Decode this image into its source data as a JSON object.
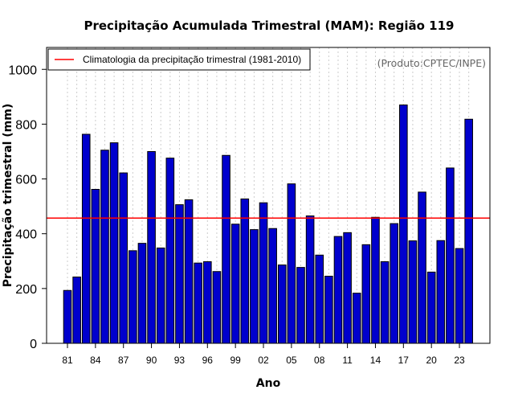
{
  "chart_data": {
    "type": "bar",
    "title": "Precipitação Acumulada Trimestral (MAM): Região 119",
    "xlabel": "Ano",
    "ylabel": "Precipitação trimestral (mm)",
    "source_note": "(Produto:CPTEC/INPE)",
    "ylim": [
      0,
      1080
    ],
    "yticks": [
      0,
      200,
      400,
      600,
      800,
      1000
    ],
    "xtick_labels": [
      "81",
      "84",
      "87",
      "90",
      "93",
      "96",
      "99",
      "02",
      "05",
      "08",
      "11",
      "14",
      "17",
      "20",
      "23"
    ],
    "years": [
      1981,
      1982,
      1983,
      1984,
      1985,
      1986,
      1987,
      1988,
      1989,
      1990,
      1991,
      1992,
      1993,
      1994,
      1995,
      1996,
      1997,
      1998,
      1999,
      2000,
      2001,
      2002,
      2003,
      2004,
      2005,
      2006,
      2007,
      2008,
      2009,
      2010,
      2011,
      2012,
      2013,
      2014,
      2015,
      2016,
      2017,
      2018,
      2019,
      2020,
      2021,
      2022,
      2023,
      2024
    ],
    "values": [
      193,
      242,
      763,
      562,
      705,
      732,
      622,
      338,
      365,
      700,
      348,
      676,
      506,
      524,
      293,
      298,
      262,
      686,
      435,
      527,
      415,
      513,
      419,
      286,
      582,
      277,
      465,
      322,
      245,
      390,
      404,
      183,
      360,
      460,
      298,
      437,
      870,
      374,
      552,
      260,
      375,
      640,
      346,
      818
    ],
    "climatology": {
      "label": "Climatologia da precipitação trimestral (1981-2010)",
      "value": 457,
      "legend_position": "top-left"
    },
    "colors": {
      "bar_fill": "#0000cd",
      "bar_stroke": "#000000",
      "climatology_line": "#ff0000",
      "grid": "#cccccc"
    },
    "grid": true
  }
}
